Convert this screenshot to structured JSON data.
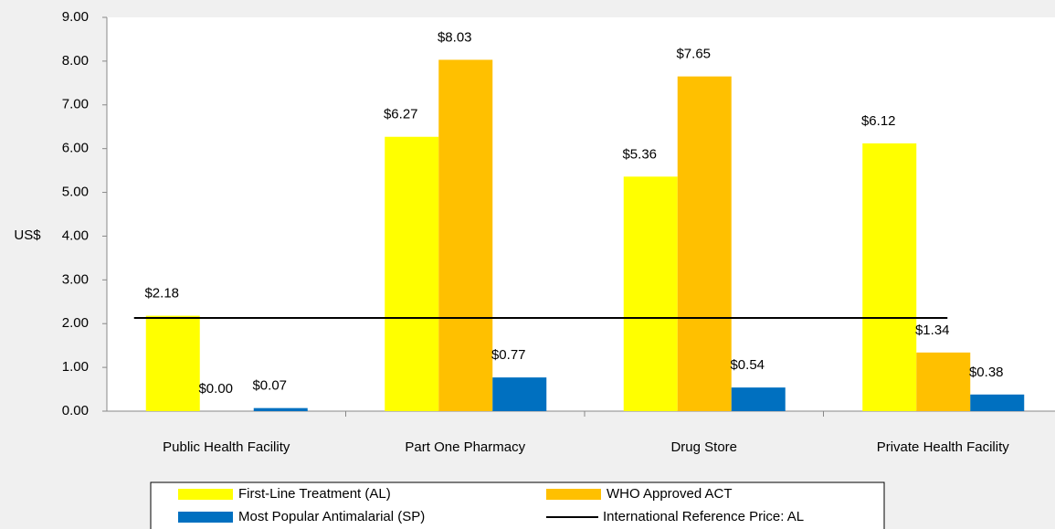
{
  "chart_data": {
    "type": "bar",
    "ylabel": "US$",
    "categories": [
      "Public Health Facility",
      "Part One Pharmacy",
      "Drug Store",
      "Private Health Facility"
    ],
    "series": [
      {
        "name": "First-Line Treatment (AL)",
        "color": "#ffff00",
        "values": [
          2.18,
          6.27,
          5.36,
          6.12
        ],
        "value_labels": [
          "$2.18",
          "$6.27",
          "$5.36",
          "$6.12"
        ]
      },
      {
        "name": "WHO Approved ACT",
        "color": "#ffc000",
        "values": [
          0,
          8.03,
          7.65,
          1.34
        ],
        "value_labels": [
          "$0.00",
          "$8.03",
          "$7.65",
          "$1.34"
        ]
      },
      {
        "name": "Most Popular Antimalarial (SP)",
        "color": "#0070c0",
        "values": [
          0.07,
          0.77,
          0.54,
          0.38
        ],
        "value_labels": [
          "$0.07",
          "$0.77",
          "$0.54",
          "$0.38"
        ]
      }
    ],
    "reference_line": {
      "name": "International Reference Price: AL",
      "color": "#000000",
      "value": 2.13
    },
    "ylim": [
      0,
      9
    ],
    "yticks": [
      {
        "value": 0,
        "label": "0.00"
      },
      {
        "value": 1,
        "label": "1.00"
      },
      {
        "value": 2,
        "label": "2.00"
      },
      {
        "value": 3,
        "label": "3.00"
      },
      {
        "value": 4,
        "label": "4.00"
      },
      {
        "value": 5,
        "label": "5.00"
      },
      {
        "value": 6,
        "label": "6.00"
      },
      {
        "value": 7,
        "label": "7.00"
      },
      {
        "value": 8,
        "label": "8.00"
      },
      {
        "value": 9,
        "label": "9.00"
      }
    ]
  }
}
